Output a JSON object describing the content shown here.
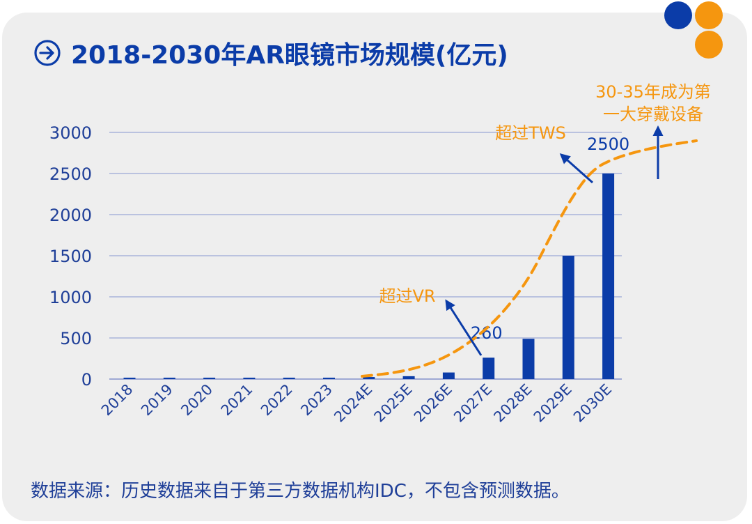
{
  "page": {
    "title": "2018-2030年AR眼镜市场规模(亿元)",
    "title_icon": "arrow-circle-right-icon",
    "source_note": "数据来源：历史数据来自于第三方数据机构IDC，不包含预测数据。"
  },
  "colors": {
    "card_bg": "#eeeeee",
    "title": "#0b3ca8",
    "bar": "#0b3ca8",
    "axis_text": "#1f3f98",
    "grid": "#9ba7d6",
    "trend": "#f5960f",
    "dot_blue": "#0b3ca8",
    "dot_orange": "#f5960f"
  },
  "chart_data": {
    "type": "bar",
    "title": "2018-2030年AR眼镜市场规模(亿元)",
    "categories": [
      "2018",
      "2019",
      "2020",
      "2021",
      "2022",
      "2023",
      "2024E",
      "2025E",
      "2026E",
      "2027E",
      "2028E",
      "2029E",
      "2030E"
    ],
    "values": [
      10,
      10,
      12,
      15,
      10,
      12,
      25,
      35,
      80,
      260,
      490,
      1500,
      2500
    ],
    "ylim": [
      0,
      3000
    ],
    "yticks": [
      0,
      500,
      1000,
      1500,
      2000,
      2500,
      3000
    ],
    "grid": true,
    "data_labels": [
      {
        "category": "2027E",
        "text": "260"
      },
      {
        "category": "2030E",
        "text": "2500"
      }
    ],
    "annotations": [
      {
        "text": "超过VR",
        "color": "#f5960f"
      },
      {
        "text": "超过TWS",
        "color": "#f5960f"
      },
      {
        "text": "30-35年成为第",
        "color": "#f5960f"
      },
      {
        "text": "一大穿戴设备",
        "color": "#f5960f"
      }
    ],
    "trend_line": {
      "style": "dashed",
      "color": "#f5960f"
    }
  }
}
